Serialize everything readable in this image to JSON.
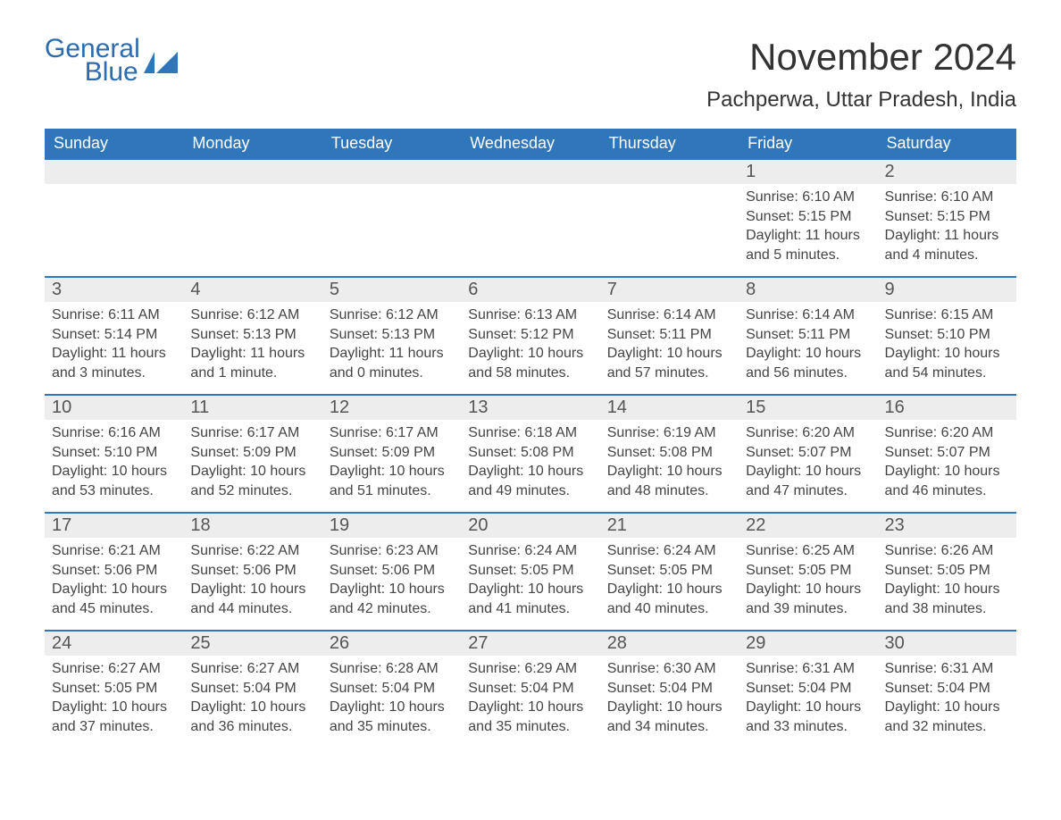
{
  "brand": {
    "general": "General",
    "blue": "Blue"
  },
  "title": "November 2024",
  "location": "Pachperwa, Uttar Pradesh, India",
  "colors": {
    "header_bg": "#2f76bb",
    "header_text": "#ffffff",
    "daynum_bg": "#ededed",
    "row_border": "#2f76bb",
    "text": "#444444",
    "brand": "#2b6cb0"
  },
  "weekdays": [
    "Sunday",
    "Monday",
    "Tuesday",
    "Wednesday",
    "Thursday",
    "Friday",
    "Saturday"
  ],
  "weeks": [
    [
      null,
      null,
      null,
      null,
      null,
      {
        "n": "1",
        "sunrise": "Sunrise: 6:10 AM",
        "sunset": "Sunset: 5:15 PM",
        "daylight": "Daylight: 11 hours and 5 minutes."
      },
      {
        "n": "2",
        "sunrise": "Sunrise: 6:10 AM",
        "sunset": "Sunset: 5:15 PM",
        "daylight": "Daylight: 11 hours and 4 minutes."
      }
    ],
    [
      {
        "n": "3",
        "sunrise": "Sunrise: 6:11 AM",
        "sunset": "Sunset: 5:14 PM",
        "daylight": "Daylight: 11 hours and 3 minutes."
      },
      {
        "n": "4",
        "sunrise": "Sunrise: 6:12 AM",
        "sunset": "Sunset: 5:13 PM",
        "daylight": "Daylight: 11 hours and 1 minute."
      },
      {
        "n": "5",
        "sunrise": "Sunrise: 6:12 AM",
        "sunset": "Sunset: 5:13 PM",
        "daylight": "Daylight: 11 hours and 0 minutes."
      },
      {
        "n": "6",
        "sunrise": "Sunrise: 6:13 AM",
        "sunset": "Sunset: 5:12 PM",
        "daylight": "Daylight: 10 hours and 58 minutes."
      },
      {
        "n": "7",
        "sunrise": "Sunrise: 6:14 AM",
        "sunset": "Sunset: 5:11 PM",
        "daylight": "Daylight: 10 hours and 57 minutes."
      },
      {
        "n": "8",
        "sunrise": "Sunrise: 6:14 AM",
        "sunset": "Sunset: 5:11 PM",
        "daylight": "Daylight: 10 hours and 56 minutes."
      },
      {
        "n": "9",
        "sunrise": "Sunrise: 6:15 AM",
        "sunset": "Sunset: 5:10 PM",
        "daylight": "Daylight: 10 hours and 54 minutes."
      }
    ],
    [
      {
        "n": "10",
        "sunrise": "Sunrise: 6:16 AM",
        "sunset": "Sunset: 5:10 PM",
        "daylight": "Daylight: 10 hours and 53 minutes."
      },
      {
        "n": "11",
        "sunrise": "Sunrise: 6:17 AM",
        "sunset": "Sunset: 5:09 PM",
        "daylight": "Daylight: 10 hours and 52 minutes."
      },
      {
        "n": "12",
        "sunrise": "Sunrise: 6:17 AM",
        "sunset": "Sunset: 5:09 PM",
        "daylight": "Daylight: 10 hours and 51 minutes."
      },
      {
        "n": "13",
        "sunrise": "Sunrise: 6:18 AM",
        "sunset": "Sunset: 5:08 PM",
        "daylight": "Daylight: 10 hours and 49 minutes."
      },
      {
        "n": "14",
        "sunrise": "Sunrise: 6:19 AM",
        "sunset": "Sunset: 5:08 PM",
        "daylight": "Daylight: 10 hours and 48 minutes."
      },
      {
        "n": "15",
        "sunrise": "Sunrise: 6:20 AM",
        "sunset": "Sunset: 5:07 PM",
        "daylight": "Daylight: 10 hours and 47 minutes."
      },
      {
        "n": "16",
        "sunrise": "Sunrise: 6:20 AM",
        "sunset": "Sunset: 5:07 PM",
        "daylight": "Daylight: 10 hours and 46 minutes."
      }
    ],
    [
      {
        "n": "17",
        "sunrise": "Sunrise: 6:21 AM",
        "sunset": "Sunset: 5:06 PM",
        "daylight": "Daylight: 10 hours and 45 minutes."
      },
      {
        "n": "18",
        "sunrise": "Sunrise: 6:22 AM",
        "sunset": "Sunset: 5:06 PM",
        "daylight": "Daylight: 10 hours and 44 minutes."
      },
      {
        "n": "19",
        "sunrise": "Sunrise: 6:23 AM",
        "sunset": "Sunset: 5:06 PM",
        "daylight": "Daylight: 10 hours and 42 minutes."
      },
      {
        "n": "20",
        "sunrise": "Sunrise: 6:24 AM",
        "sunset": "Sunset: 5:05 PM",
        "daylight": "Daylight: 10 hours and 41 minutes."
      },
      {
        "n": "21",
        "sunrise": "Sunrise: 6:24 AM",
        "sunset": "Sunset: 5:05 PM",
        "daylight": "Daylight: 10 hours and 40 minutes."
      },
      {
        "n": "22",
        "sunrise": "Sunrise: 6:25 AM",
        "sunset": "Sunset: 5:05 PM",
        "daylight": "Daylight: 10 hours and 39 minutes."
      },
      {
        "n": "23",
        "sunrise": "Sunrise: 6:26 AM",
        "sunset": "Sunset: 5:05 PM",
        "daylight": "Daylight: 10 hours and 38 minutes."
      }
    ],
    [
      {
        "n": "24",
        "sunrise": "Sunrise: 6:27 AM",
        "sunset": "Sunset: 5:05 PM",
        "daylight": "Daylight: 10 hours and 37 minutes."
      },
      {
        "n": "25",
        "sunrise": "Sunrise: 6:27 AM",
        "sunset": "Sunset: 5:04 PM",
        "daylight": "Daylight: 10 hours and 36 minutes."
      },
      {
        "n": "26",
        "sunrise": "Sunrise: 6:28 AM",
        "sunset": "Sunset: 5:04 PM",
        "daylight": "Daylight: 10 hours and 35 minutes."
      },
      {
        "n": "27",
        "sunrise": "Sunrise: 6:29 AM",
        "sunset": "Sunset: 5:04 PM",
        "daylight": "Daylight: 10 hours and 35 minutes."
      },
      {
        "n": "28",
        "sunrise": "Sunrise: 6:30 AM",
        "sunset": "Sunset: 5:04 PM",
        "daylight": "Daylight: 10 hours and 34 minutes."
      },
      {
        "n": "29",
        "sunrise": "Sunrise: 6:31 AM",
        "sunset": "Sunset: 5:04 PM",
        "daylight": "Daylight: 10 hours and 33 minutes."
      },
      {
        "n": "30",
        "sunrise": "Sunrise: 6:31 AM",
        "sunset": "Sunset: 5:04 PM",
        "daylight": "Daylight: 10 hours and 32 minutes."
      }
    ]
  ]
}
